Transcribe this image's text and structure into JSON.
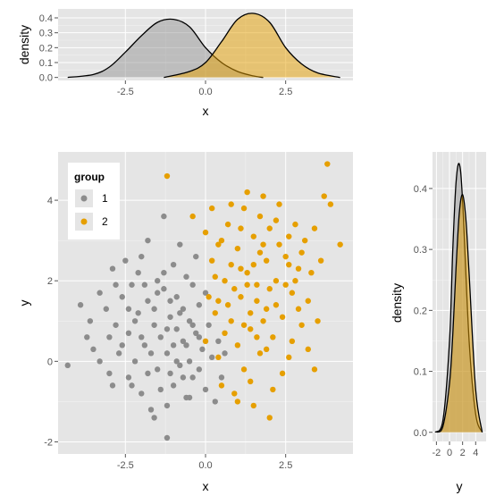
{
  "colors": {
    "group1": "#8c8c8c",
    "group2": "#e69f00",
    "panel": "#e5e5e5"
  },
  "chart_data": [
    {
      "type": "area",
      "panel": "top-density",
      "xlabel": "x",
      "ylabel": "density",
      "xlim": [
        -4.6,
        4.6
      ],
      "ylim": [
        -0.02,
        0.46
      ],
      "x_ticks": [
        {
          "v": -2.5,
          "label": "-2.5"
        },
        {
          "v": 0,
          "label": "0.0"
        },
        {
          "v": 2.5,
          "label": "2.5"
        }
      ],
      "y_ticks": [
        {
          "v": 0,
          "label": "0.0"
        },
        {
          "v": 0.1,
          "label": "0.1"
        },
        {
          "v": 0.2,
          "label": "0.2"
        },
        {
          "v": 0.3,
          "label": "0.3"
        },
        {
          "v": 0.4,
          "label": "0.4"
        }
      ],
      "grid": true,
      "series": [
        {
          "name": "1",
          "x": [
            -4.3,
            -3.5,
            -3.0,
            -2.5,
            -2.0,
            -1.5,
            -1.0,
            -0.5,
            0.0,
            0.5,
            1.0,
            1.5,
            1.8
          ],
          "y": [
            0.0,
            0.02,
            0.07,
            0.17,
            0.28,
            0.37,
            0.39,
            0.34,
            0.2,
            0.1,
            0.04,
            0.01,
            0.0
          ]
        },
        {
          "name": "2",
          "x": [
            -1.3,
            -0.5,
            0.0,
            0.5,
            1.0,
            1.5,
            2.0,
            2.5,
            3.0,
            3.5,
            4.2
          ],
          "y": [
            0.0,
            0.04,
            0.1,
            0.24,
            0.39,
            0.43,
            0.37,
            0.2,
            0.09,
            0.03,
            0.0
          ]
        }
      ]
    },
    {
      "type": "scatter",
      "panel": "main-scatter",
      "xlabel": "x",
      "ylabel": "y",
      "xlim": [
        -4.6,
        4.6
      ],
      "ylim": [
        -2.3,
        5.2
      ],
      "x_ticks": [
        {
          "v": -2.5,
          "label": "-2.5"
        },
        {
          "v": 0,
          "label": "0.0"
        },
        {
          "v": 2.5,
          "label": "2.5"
        }
      ],
      "y_ticks": [
        {
          "v": -2,
          "label": "-2"
        },
        {
          "v": 0,
          "label": "0"
        },
        {
          "v": 2,
          "label": "2"
        },
        {
          "v": 4,
          "label": "4"
        }
      ],
      "grid": true,
      "legend": {
        "title": "group",
        "placement": "top-left",
        "entries": [
          "1",
          "2"
        ]
      },
      "series": [
        {
          "name": "1",
          "points": [
            [
              -4.3,
              -0.1
            ],
            [
              -3.9,
              1.4
            ],
            [
              -3.5,
              0.3
            ],
            [
              -3.6,
              1.0
            ],
            [
              -3.3,
              1.7
            ],
            [
              -3.1,
              1.3
            ],
            [
              -3.0,
              0.6
            ],
            [
              -3.0,
              -0.3
            ],
            [
              -2.9,
              2.3
            ],
            [
              -2.8,
              0.9
            ],
            [
              -2.7,
              0.2
            ],
            [
              -2.6,
              1.6
            ],
            [
              -2.5,
              2.5
            ],
            [
              -2.4,
              -0.4
            ],
            [
              -2.4,
              0.7
            ],
            [
              -2.3,
              1.9
            ],
            [
              -2.2,
              0.0
            ],
            [
              -2.1,
              1.2
            ],
            [
              -2.0,
              2.6
            ],
            [
              -2.0,
              -0.8
            ],
            [
              -1.9,
              0.4
            ],
            [
              -1.8,
              1.5
            ],
            [
              -1.8,
              3.0
            ],
            [
              -1.7,
              -1.2
            ],
            [
              -1.6,
              0.9
            ],
            [
              -1.5,
              2.0
            ],
            [
              -1.5,
              -0.2
            ],
            [
              -1.4,
              0.6
            ],
            [
              -1.3,
              1.8
            ],
            [
              -1.3,
              3.6
            ],
            [
              -1.2,
              -1.9
            ],
            [
              -1.2,
              0.2
            ],
            [
              -1.1,
              1.1
            ],
            [
              -1.0,
              2.4
            ],
            [
              -1.0,
              -0.6
            ],
            [
              -0.9,
              0.8
            ],
            [
              -0.9,
              1.6
            ],
            [
              -0.8,
              -0.1
            ],
            [
              -0.8,
              2.9
            ],
            [
              -0.7,
              0.5
            ],
            [
              -0.7,
              1.3
            ],
            [
              -0.6,
              -0.9
            ],
            [
              -0.6,
              2.1
            ],
            [
              -0.5,
              0.0
            ],
            [
              -0.5,
              1.0
            ],
            [
              -0.4,
              1.9
            ],
            [
              -0.4,
              -0.4
            ],
            [
              -0.3,
              0.7
            ],
            [
              -0.3,
              2.6
            ],
            [
              -0.2,
              1.4
            ],
            [
              -0.2,
              -0.2
            ],
            [
              -0.1,
              0.3
            ],
            [
              0.0,
              1.7
            ],
            [
              0.0,
              -0.7
            ],
            [
              0.1,
              0.9
            ],
            [
              0.2,
              0.1
            ],
            [
              0.3,
              -1.0
            ],
            [
              0.4,
              0.5
            ],
            [
              0.5,
              -0.4
            ],
            [
              0.6,
              0.2
            ],
            [
              -2.2,
              1.0
            ],
            [
              -1.6,
              1.3
            ],
            [
              -2.6,
              0.4
            ],
            [
              -1.4,
              -0.7
            ],
            [
              -0.9,
              0.0
            ],
            [
              -1.9,
              1.9
            ],
            [
              -2.8,
              1.9
            ],
            [
              -3.3,
              0.0
            ],
            [
              -1.1,
              -0.3
            ],
            [
              -0.6,
              0.4
            ],
            [
              -2.0,
              0.6
            ],
            [
              -1.7,
              0.2
            ],
            [
              -1.2,
              0.8
            ],
            [
              -0.8,
              1.2
            ],
            [
              -2.4,
              1.3
            ],
            [
              -1.5,
              1.7
            ],
            [
              -1.0,
              0.4
            ],
            [
              -0.4,
              0.9
            ],
            [
              -1.8,
              -0.3
            ],
            [
              -2.1,
              2.2
            ],
            [
              -1.3,
              2.2
            ],
            [
              -0.5,
              -0.9
            ],
            [
              -2.9,
              -0.6
            ],
            [
              -1.6,
              -1.4
            ],
            [
              -0.2,
              0.6
            ],
            [
              -1.1,
              1.5
            ],
            [
              -2.3,
              -0.6
            ],
            [
              -0.7,
              -0.4
            ],
            [
              -3.7,
              0.6
            ],
            [
              -1.2,
              -1.1
            ]
          ]
        },
        {
          "name": "2",
          "points": [
            [
              -1.2,
              4.6
            ],
            [
              -0.4,
              3.6
            ],
            [
              0.0,
              3.2
            ],
            [
              0.2,
              2.5
            ],
            [
              0.3,
              1.2
            ],
            [
              0.4,
              0.1
            ],
            [
              0.5,
              -0.6
            ],
            [
              0.6,
              2.0
            ],
            [
              0.7,
              3.4
            ],
            [
              0.8,
              1.0
            ],
            [
              0.9,
              -0.8
            ],
            [
              1.0,
              2.8
            ],
            [
              1.0,
              0.4
            ],
            [
              1.1,
              1.6
            ],
            [
              1.2,
              3.8
            ],
            [
              1.2,
              -0.2
            ],
            [
              1.3,
              2.2
            ],
            [
              1.4,
              0.8
            ],
            [
              1.5,
              3.1
            ],
            [
              1.5,
              -1.1
            ],
            [
              1.6,
              1.9
            ],
            [
              1.7,
              0.2
            ],
            [
              1.7,
              2.7
            ],
            [
              1.8,
              4.1
            ],
            [
              1.9,
              1.3
            ],
            [
              2.0,
              -1.4
            ],
            [
              2.0,
              3.3
            ],
            [
              2.1,
              0.6
            ],
            [
              2.2,
              2.0
            ],
            [
              2.3,
              3.9
            ],
            [
              2.4,
              1.1
            ],
            [
              2.5,
              2.6
            ],
            [
              2.6,
              0.1
            ],
            [
              2.7,
              1.7
            ],
            [
              2.8,
              3.4
            ],
            [
              2.9,
              2.3
            ],
            [
              3.0,
              0.9
            ],
            [
              3.1,
              3.0
            ],
            [
              3.2,
              1.5
            ],
            [
              3.3,
              2.2
            ],
            [
              3.4,
              -0.2
            ],
            [
              3.5,
              1.0
            ],
            [
              3.7,
              4.1
            ],
            [
              3.8,
              4.9
            ],
            [
              3.9,
              3.9
            ],
            [
              4.2,
              2.9
            ],
            [
              0.1,
              1.6
            ],
            [
              0.4,
              2.9
            ],
            [
              0.8,
              2.4
            ],
            [
              1.1,
              3.3
            ],
            [
              1.4,
              1.2
            ],
            [
              1.8,
              2.9
            ],
            [
              2.2,
              1.4
            ],
            [
              2.6,
              3.1
            ],
            [
              0.6,
              0.7
            ],
            [
              1.6,
              0.6
            ],
            [
              2.4,
              -0.3
            ],
            [
              3.0,
              2.7
            ],
            [
              1.3,
              4.2
            ],
            [
              0.2,
              3.8
            ],
            [
              0.9,
              1.8
            ],
            [
              1.9,
              2.5
            ],
            [
              2.7,
              0.5
            ],
            [
              1.0,
              -1.0
            ],
            [
              2.1,
              -0.7
            ],
            [
              1.5,
              2.4
            ],
            [
              0.7,
              1.4
            ],
            [
              2.9,
              1.3
            ],
            [
              1.7,
              3.6
            ],
            [
              0.3,
              2.1
            ],
            [
              2.3,
              2.9
            ],
            [
              1.2,
              0.9
            ],
            [
              3.6,
              2.5
            ],
            [
              2.0,
              1.8
            ],
            [
              0.5,
              3.0
            ],
            [
              1.1,
              2.3
            ],
            [
              1.8,
              1.0
            ],
            [
              2.5,
              1.9
            ],
            [
              0.0,
              0.5
            ],
            [
              1.4,
              -0.5
            ],
            [
              2.8,
              2.0
            ],
            [
              3.2,
              0.3
            ],
            [
              1.6,
              1.5
            ],
            [
              0.8,
              3.9
            ],
            [
              2.2,
              3.5
            ],
            [
              1.3,
              1.9
            ],
            [
              0.4,
              1.5
            ],
            [
              1.9,
              0.3
            ],
            [
              2.6,
              2.4
            ],
            [
              3.4,
              3.3
            ]
          ]
        }
      ]
    },
    {
      "type": "area",
      "panel": "right-density",
      "xlabel": "y",
      "ylabel": "density",
      "xlim": [
        -2.6,
        5.6
      ],
      "ylim": [
        -0.015,
        0.46
      ],
      "x_ticks": [
        {
          "v": -2,
          "label": "-2"
        },
        {
          "v": 0,
          "label": "0"
        },
        {
          "v": 2,
          "label": "2"
        },
        {
          "v": 4,
          "label": "4"
        }
      ],
      "y_ticks": [
        {
          "v": 0,
          "label": "0.0"
        },
        {
          "v": 0.1,
          "label": "0.1"
        },
        {
          "v": 0.2,
          "label": "0.2"
        },
        {
          "v": 0.3,
          "label": "0.3"
        },
        {
          "v": 0.4,
          "label": "0.4"
        }
      ],
      "grid": true,
      "series": [
        {
          "name": "1",
          "x": [
            -2.2,
            -1.0,
            0.0,
            0.5,
            1.0,
            1.5,
            2.0,
            3.0,
            4.0,
            5.0
          ],
          "y": [
            0.0,
            0.02,
            0.15,
            0.3,
            0.41,
            0.44,
            0.38,
            0.15,
            0.03,
            0.0
          ]
        },
        {
          "name": "2",
          "x": [
            -2.0,
            -1.0,
            0.0,
            0.5,
            1.0,
            1.5,
            2.0,
            2.5,
            3.0,
            4.0,
            5.0
          ],
          "y": [
            0.0,
            0.01,
            0.08,
            0.16,
            0.27,
            0.36,
            0.39,
            0.35,
            0.26,
            0.07,
            0.0
          ]
        }
      ]
    }
  ]
}
